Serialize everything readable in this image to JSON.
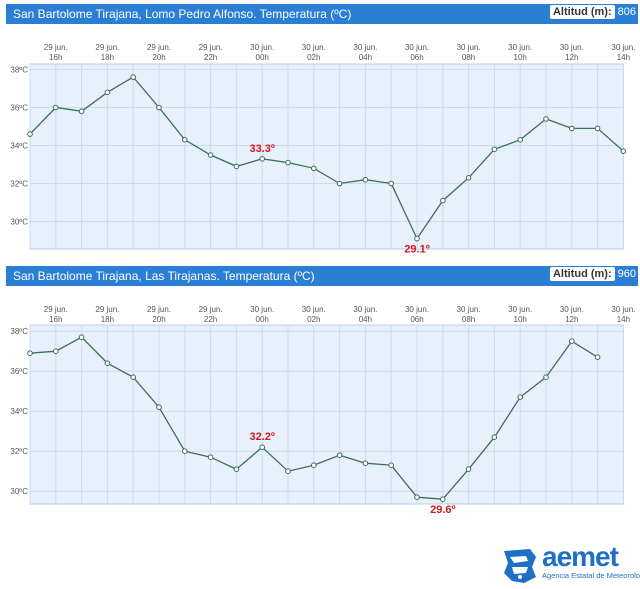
{
  "colors": {
    "header": "#2a7fd4",
    "line": "#3b6e5c",
    "plot_bg": "#e8f1fb",
    "annotation": "#d0161e",
    "brand": "#1e6fc5"
  },
  "charts": [
    {
      "title": "San Bartolome Tirajana, Lomo Pedro Alfonso. Temperatura (ºC)",
      "altitude_label": "Altitud (m):",
      "altitude_value": "806"
    },
    {
      "title": "San Bartolome Tirajana, Las Tirajanas. Temperatura (ºC)",
      "altitude_label": "Altitud (m):",
      "altitude_value": "960"
    }
  ],
  "logo": {
    "name": "aemet",
    "subtitle": "Agencia Estatal de Meteorología"
  },
  "chart_data": [
    {
      "type": "line",
      "title": "San Bartolome Tirajana, Lomo Pedro Alfonso. Temperatura (ºC)",
      "x_ticks": [
        {
          "day": "29 jun.",
          "hour": "16h"
        },
        {
          "day": "29 jun.",
          "hour": "18h"
        },
        {
          "day": "29 jun.",
          "hour": "20h"
        },
        {
          "day": "29 jun.",
          "hour": "22h"
        },
        {
          "day": "30 jun.",
          "hour": "00h"
        },
        {
          "day": "30 jun.",
          "hour": "02h"
        },
        {
          "day": "30 jun.",
          "hour": "04h"
        },
        {
          "day": "30 jun.",
          "hour": "06h"
        },
        {
          "day": "30 jun.",
          "hour": "08h"
        },
        {
          "day": "30 jun.",
          "hour": "10h"
        },
        {
          "day": "30 jun.",
          "hour": "12h"
        },
        {
          "day": "30 jun.",
          "hour": "14h"
        }
      ],
      "y_ticks": [
        "38ºC",
        "36ºC",
        "34ºC",
        "32ºC",
        "30ºC"
      ],
      "ylim": [
        29,
        38.4
      ],
      "x": [
        "15h",
        "16h",
        "17h",
        "18h",
        "19h",
        "20h",
        "21h",
        "22h",
        "23h",
        "00h",
        "01h",
        "02h",
        "03h",
        "04h",
        "05h",
        "06h",
        "07h",
        "08h",
        "09h",
        "10h",
        "11h",
        "12h",
        "13h",
        "14h"
      ],
      "values": [
        34.6,
        36.0,
        35.8,
        36.8,
        37.6,
        36.0,
        34.3,
        33.5,
        32.9,
        33.3,
        33.1,
        32.8,
        32.0,
        32.2,
        32.0,
        29.1,
        31.1,
        32.3,
        33.8,
        34.3,
        35.4,
        34.9,
        34.9,
        33.7
      ],
      "annotations": [
        {
          "index": 9,
          "text": "33.3º"
        },
        {
          "index": 15,
          "text": "29.1º"
        }
      ]
    },
    {
      "type": "line",
      "title": "San Bartolome Tirajana, Las Tirajanas. Temperatura (ºC)",
      "x_ticks": [
        {
          "day": "29 jun.",
          "hour": "16h"
        },
        {
          "day": "29 jun.",
          "hour": "18h"
        },
        {
          "day": "29 jun.",
          "hour": "20h"
        },
        {
          "day": "29 jun.",
          "hour": "22h"
        },
        {
          "day": "30 jun.",
          "hour": "00h"
        },
        {
          "day": "30 jun.",
          "hour": "02h"
        },
        {
          "day": "30 jun.",
          "hour": "04h"
        },
        {
          "day": "30 jun.",
          "hour": "06h"
        },
        {
          "day": "30 jun.",
          "hour": "08h"
        },
        {
          "day": "30 jun.",
          "hour": "10h"
        },
        {
          "day": "30 jun.",
          "hour": "12h"
        },
        {
          "day": "30 jun.",
          "hour": "14h"
        }
      ],
      "y_ticks": [
        "38ºC",
        "36ºC",
        "34ºC",
        "32ºC",
        "30ºC"
      ],
      "ylim": [
        29.4,
        38.4
      ],
      "x": [
        "15h",
        "16h",
        "17h",
        "18h",
        "19h",
        "20h",
        "21h",
        "22h",
        "23h",
        "00h",
        "01h",
        "02h",
        "03h",
        "04h",
        "05h",
        "06h",
        "07h",
        "08h",
        "09h",
        "10h",
        "11h",
        "12h",
        "13h"
      ],
      "values": [
        36.9,
        37.0,
        37.7,
        36.4,
        35.7,
        34.2,
        32.0,
        31.7,
        31.1,
        32.2,
        31.0,
        31.3,
        31.8,
        31.4,
        31.3,
        29.7,
        29.6,
        31.1,
        32.7,
        34.7,
        35.7,
        37.5,
        36.7
      ],
      "annotations": [
        {
          "index": 9,
          "text": "32.2º"
        },
        {
          "index": 16,
          "text": "29.6º"
        }
      ]
    }
  ]
}
